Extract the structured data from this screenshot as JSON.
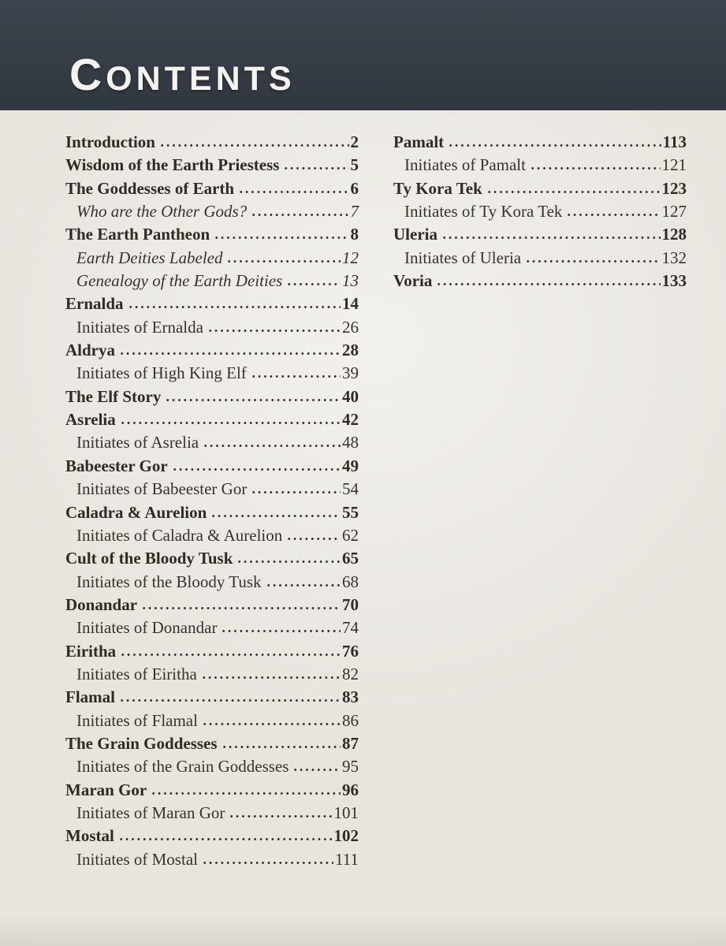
{
  "header": {
    "title": "Contents",
    "title_first": "C",
    "title_rest": "ONTENTS"
  },
  "colors": {
    "header_bg": "#353c45",
    "header_text": "#f4f3ee",
    "page_bg": "#e8e5df",
    "ink": "#36322c"
  },
  "toc": {
    "columns": [
      {
        "entries": [
          {
            "label": "Introduction",
            "page": "2",
            "style": "chapter"
          },
          {
            "label": "Wisdom of the Earth Priestess",
            "page": "5",
            "style": "chapter"
          },
          {
            "label": "The Goddesses of Earth",
            "page": "6",
            "style": "chapter"
          },
          {
            "label": "Who are the Other Gods?",
            "page": "7",
            "style": "subitalic"
          },
          {
            "label": "The Earth Pantheon",
            "page": "8",
            "style": "chapter"
          },
          {
            "label": "Earth Deities Labeled",
            "page": "12",
            "style": "subitalic"
          },
          {
            "label": "Genealogy of the Earth Deities",
            "page": "13",
            "style": "subitalic"
          },
          {
            "label": "Ernalda",
            "page": "14",
            "style": "chapter"
          },
          {
            "label": "Initiates of Ernalda",
            "page": "26",
            "style": "sub"
          },
          {
            "label": "Aldrya",
            "page": "28",
            "style": "chapter"
          },
          {
            "label": "Initiates of High King Elf",
            "page": "39",
            "style": "sub"
          },
          {
            "label": "The Elf Story",
            "page": "40",
            "style": "chapter"
          },
          {
            "label": "Asrelia",
            "page": "42",
            "style": "chapter"
          },
          {
            "label": "Initiates of Asrelia",
            "page": "48",
            "style": "sub"
          },
          {
            "label": "Babeester Gor",
            "page": "49",
            "style": "chapter"
          },
          {
            "label": "Initiates of Babeester Gor",
            "page": "54",
            "style": "sub"
          },
          {
            "label": "Caladra & Aurelion",
            "page": "55",
            "style": "chapter"
          },
          {
            "label": "Initiates of Caladra & Aurelion",
            "page": "62",
            "style": "sub"
          },
          {
            "label": "Cult of the Bloody Tusk",
            "page": "65",
            "style": "chapter"
          },
          {
            "label": "Initiates of the Bloody Tusk",
            "page": "68",
            "style": "sub"
          },
          {
            "label": "Donandar",
            "page": "70",
            "style": "chapter"
          },
          {
            "label": "Initiates of Donandar",
            "page": "74",
            "style": "sub"
          },
          {
            "label": "Eiritha",
            "page": "76",
            "style": "chapter"
          },
          {
            "label": "Initiates of Eiritha",
            "page": "82",
            "style": "sub"
          },
          {
            "label": "Flamal",
            "page": "83",
            "style": "chapter"
          },
          {
            "label": "Initiates of Flamal",
            "page": "86",
            "style": "sub"
          },
          {
            "label": "The Grain Goddesses",
            "page": "87",
            "style": "chapter"
          },
          {
            "label": "Initiates of the Grain Goddesses",
            "page": "95",
            "style": "sub"
          },
          {
            "label": "Maran Gor",
            "page": "96",
            "style": "chapter"
          },
          {
            "label": "Initiates of Maran Gor",
            "page": "101",
            "style": "sub"
          },
          {
            "label": "Mostal",
            "page": "102",
            "style": "chapter"
          },
          {
            "label": "Initiates of Mostal",
            "page": "111",
            "style": "sub"
          }
        ]
      },
      {
        "entries": [
          {
            "label": "Pamalt",
            "page": "113",
            "style": "chapter"
          },
          {
            "label": "Initiates of Pamalt",
            "page": "121",
            "style": "sub"
          },
          {
            "label": "Ty Kora Tek",
            "page": "123",
            "style": "chapter"
          },
          {
            "label": "Initiates of Ty Kora Tek",
            "page": "127",
            "style": "sub"
          },
          {
            "label": "Uleria",
            "page": "128",
            "style": "chapter"
          },
          {
            "label": "Initiates of Uleria",
            "page": "132",
            "style": "sub"
          },
          {
            "label": "Voria",
            "page": "133",
            "style": "chapter"
          }
        ]
      }
    ]
  }
}
